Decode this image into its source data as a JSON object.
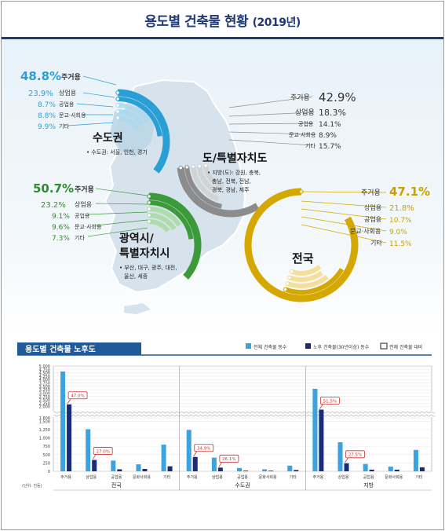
{
  "header": {
    "title": "용도별 건축물 현황",
    "year": "(2019년)"
  },
  "regions": {
    "capital": {
      "name": "수도권",
      "desc": "• 수도권: 서울, 인천, 경기",
      "color": "#2a9fd6",
      "items": [
        {
          "value": "48.8%",
          "label": "주거용"
        },
        {
          "value": "23.9%",
          "label": "상업용"
        },
        {
          "value": "8.7%",
          "label": "공업용"
        },
        {
          "value": "8.8%",
          "label": "문교·사회용"
        },
        {
          "value": "9.9%",
          "label": "기타"
        }
      ]
    },
    "province": {
      "name": "도/특별자치도",
      "desc1": "• 지방(도): 강원, 충북,",
      "desc2": "충남, 전북, 전남,",
      "desc3": "경북, 경남, 제주",
      "color": "#8c8c8c",
      "items": [
        {
          "value": "42.9%",
          "label": "주거용"
        },
        {
          "value": "18.3%",
          "label": "상업용"
        },
        {
          "value": "14.1%",
          "label": "공업용"
        },
        {
          "value": "8.9%",
          "label": "문교·사회용"
        },
        {
          "value": "15.7%",
          "label": "기타"
        }
      ]
    },
    "metro": {
      "name1": "광역시/",
      "name2": "특별자치시",
      "desc1": "• 부산, 대구, 광주, 대전,",
      "desc2": "울산, 세종",
      "color": "#3d9a3a",
      "items": [
        {
          "value": "50.7%",
          "label": "주거용"
        },
        {
          "value": "23.2%",
          "label": "상업용"
        },
        {
          "value": "9.1%",
          "label": "공업용"
        },
        {
          "value": "9.6%",
          "label": "문교·사회용"
        },
        {
          "value": "7.3%",
          "label": "기타"
        }
      ]
    },
    "national": {
      "name": "전국",
      "color": "#d4a800",
      "items": [
        {
          "value": "47.1%",
          "label": "주거용"
        },
        {
          "value": "21.8%",
          "label": "상업용"
        },
        {
          "value": "10.7%",
          "label": "공업용"
        },
        {
          "value": "9.0%",
          "label": "문교·사회용"
        },
        {
          "value": "11.5%",
          "label": "기타"
        }
      ]
    }
  },
  "chart_data": {
    "type": "bar",
    "title": "용도별 건축물 노후도",
    "legend": {
      "total": "전체 건축물 동수",
      "old": "노후 건축물(30년이상) 동수",
      "ratio": "전체 건축물 대비"
    },
    "unit": "(단위: 천동)",
    "colors": {
      "total": "#3aa3e0",
      "old": "#1c2a7c",
      "ratio": "#d03030"
    },
    "yticks": [
      "0",
      "250",
      "500",
      "750",
      "1,000",
      "1,250",
      "1,500",
      "1,600",
      "2,000",
      "2,250",
      "2,500",
      "2,750",
      "3,000",
      "3,250",
      "3,500",
      "3,750",
      "4,000",
      "4,250",
      "4,500",
      "4,750",
      "5,000"
    ],
    "groups": [
      {
        "name": "전국",
        "categories": [
          "주거용",
          "상업용",
          "공업용",
          "문화사회용",
          "기타"
        ],
        "total": [
          4600,
          1260,
          320,
          210,
          800
        ],
        "old": [
          2170,
          340,
          60,
          70,
          150
        ],
        "ratio": [
          {
            "index": 0,
            "label": "47.0%"
          },
          {
            "index": 1,
            "label": "27.0%"
          }
        ]
      },
      {
        "name": "수도권",
        "categories": [
          "주거용",
          "상업용",
          "공업용",
          "문화사회용",
          "기타"
        ],
        "total": [
          1240,
          410,
          100,
          60,
          170
        ],
        "old": [
          430,
          110,
          20,
          20,
          40
        ],
        "ratio": [
          {
            "index": 0,
            "label": "34.9%"
          },
          {
            "index": 1,
            "label": "26.1%"
          }
        ]
      },
      {
        "name": "지방",
        "categories": [
          "주거용",
          "상업용",
          "공업용",
          "문화사회용",
          "기타"
        ],
        "total": [
          3320,
          870,
          220,
          140,
          640
        ],
        "old": [
          1780,
          240,
          50,
          50,
          120
        ],
        "ratio": [
          {
            "index": 0,
            "label": "51.5%"
          },
          {
            "index": 1,
            "label": "27.5%"
          }
        ]
      }
    ]
  }
}
